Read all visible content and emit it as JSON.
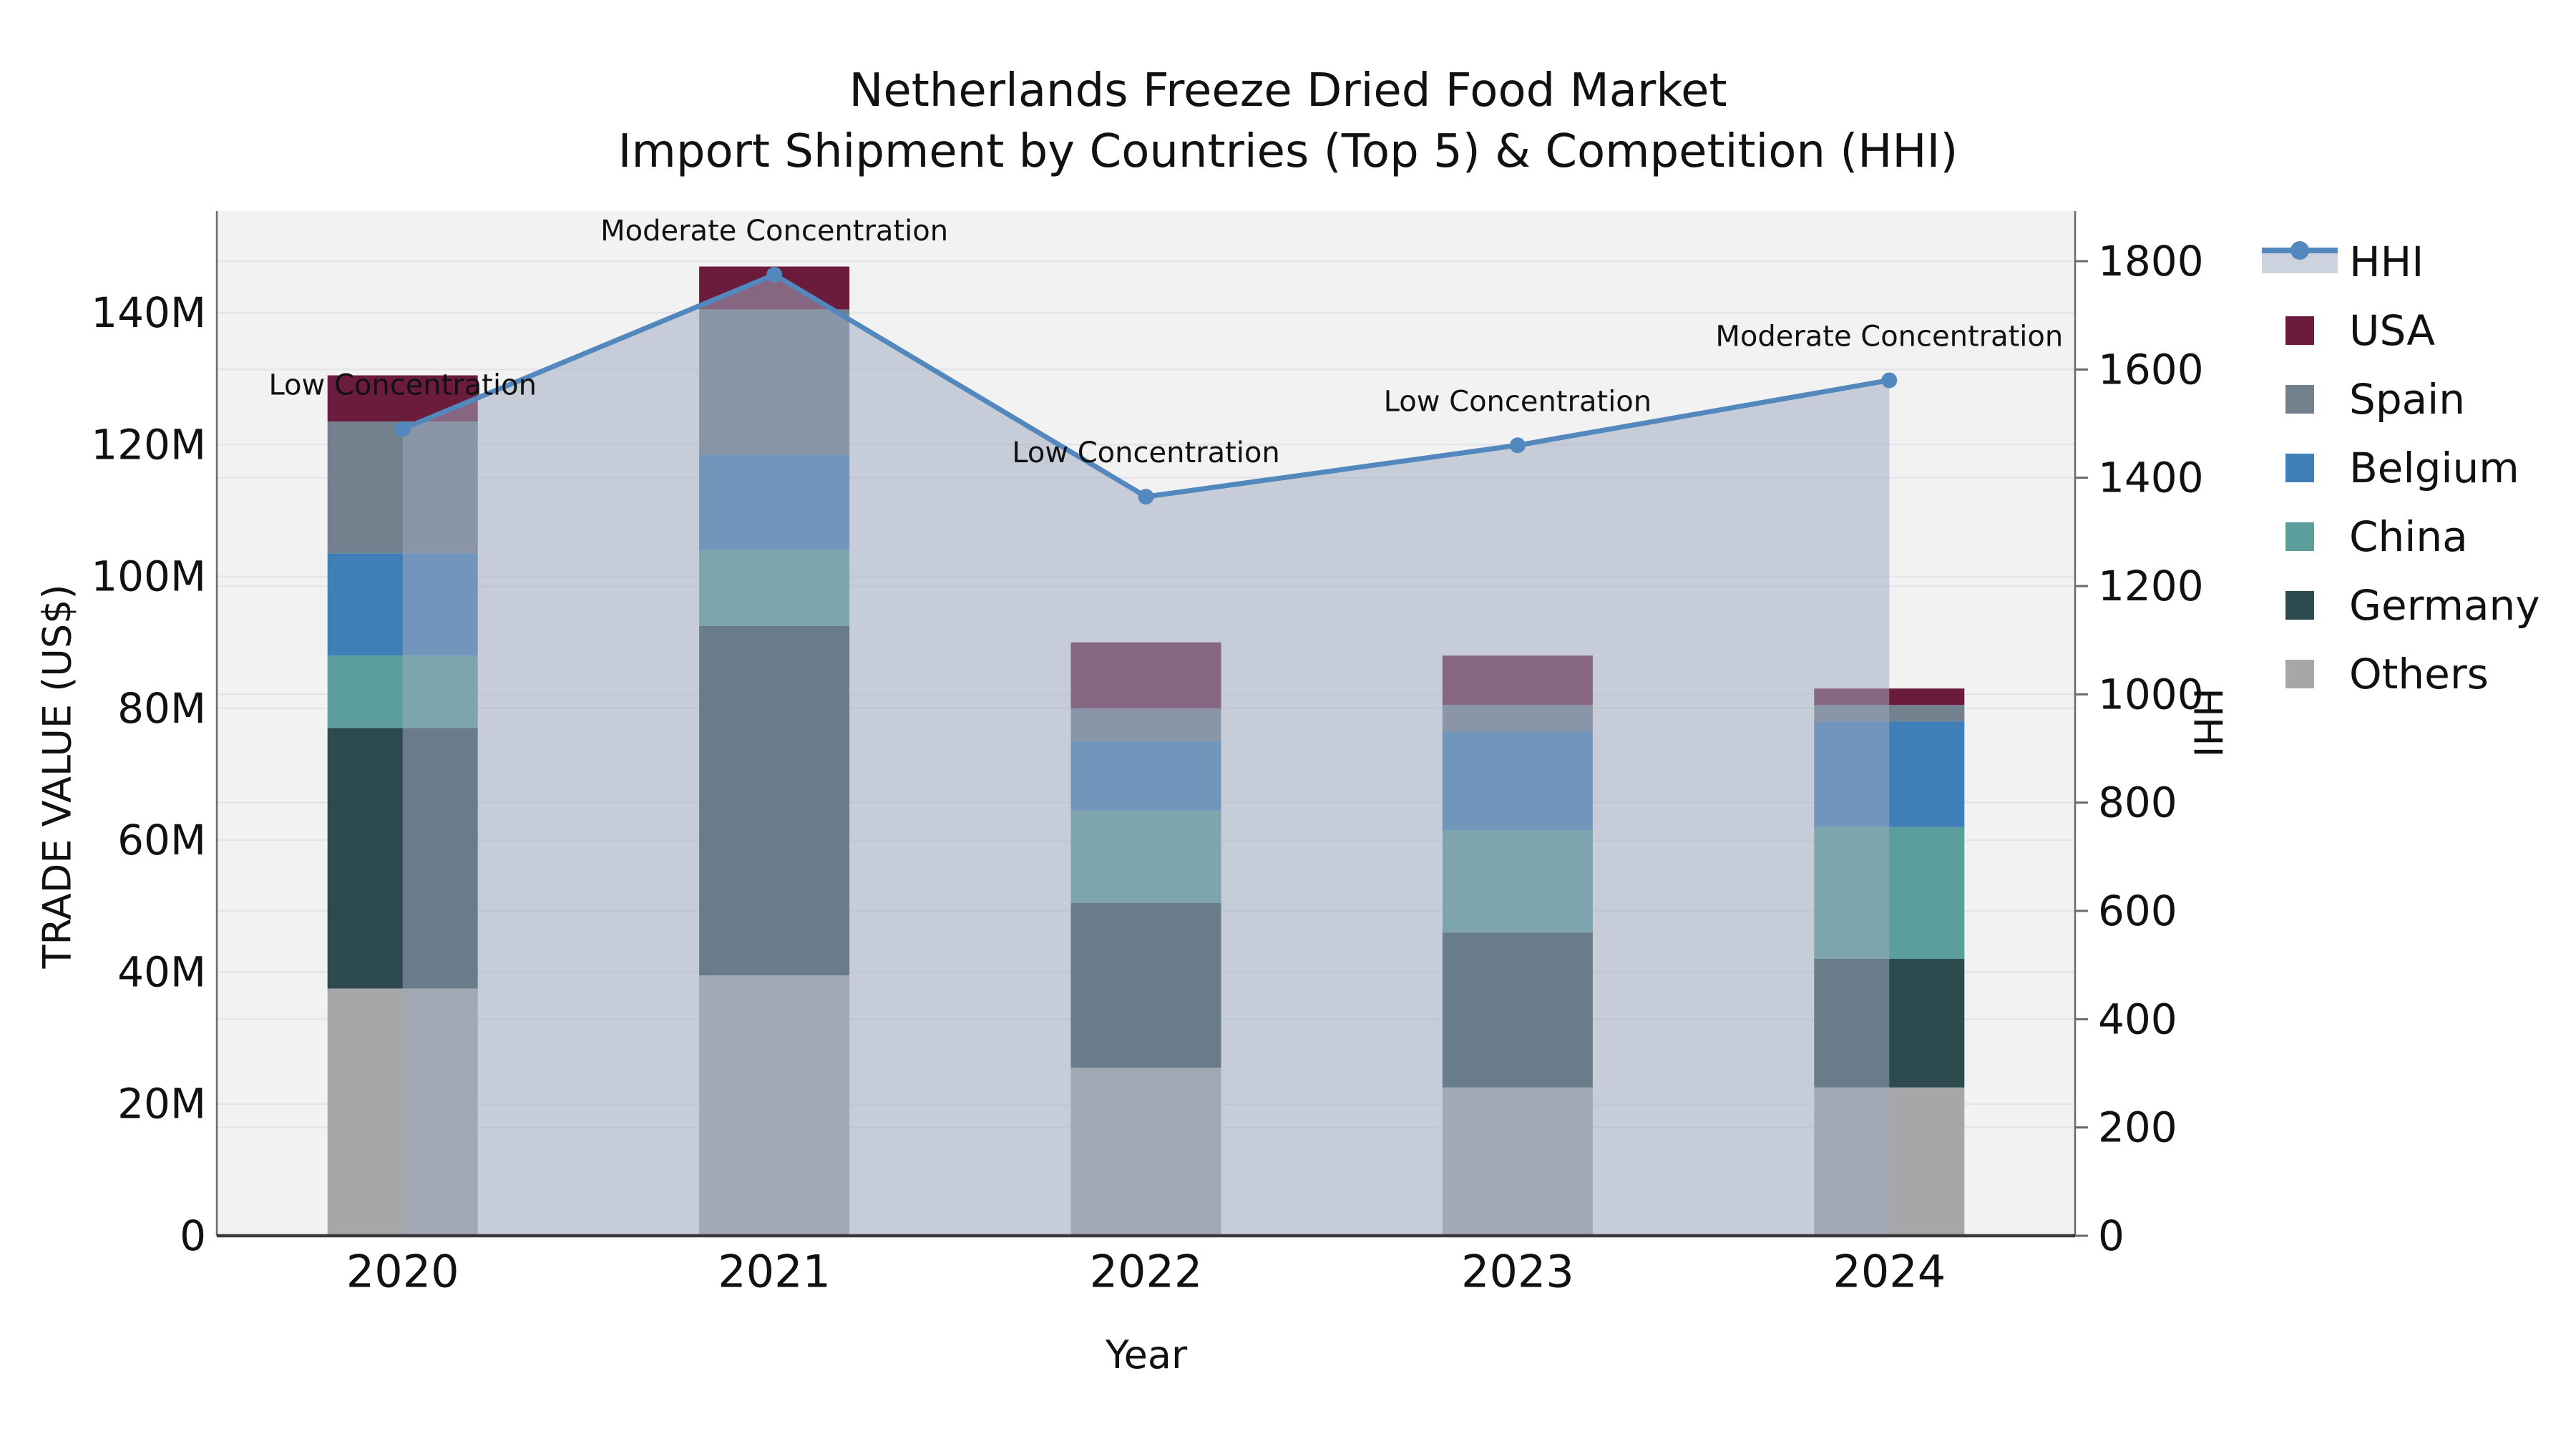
{
  "title": {
    "line1": "Netherlands Freeze Dried Food Market",
    "line2": "Import Shipment by Countries (Top 5) & Competition (HHI)"
  },
  "chart_data": {
    "type": "bar+line",
    "categories": [
      "2020",
      "2021",
      "2022",
      "2023",
      "2024"
    ],
    "xlabel": "Year",
    "ylabel_left": "TRADE VALUE (US$)",
    "ylabel_right": "HHI",
    "y_left_ticks": [
      "0",
      "20M",
      "40M",
      "60M",
      "80M",
      "100M",
      "120M",
      "140M"
    ],
    "y_left_tick_values_m": [
      0,
      20,
      40,
      60,
      80,
      100,
      120,
      140
    ],
    "y_right_ticks": [
      "0",
      "200",
      "400",
      "600",
      "800",
      "1000",
      "1200",
      "1400",
      "1600",
      "1800"
    ],
    "y_right_tick_values": [
      0,
      200,
      400,
      600,
      800,
      1000,
      1200,
      1400,
      1600,
      1800
    ],
    "grid": true,
    "legend_position": "right",
    "series": [
      {
        "name": "USA",
        "color": "#6b1c3c",
        "values_m": [
          7,
          6.5,
          10,
          7.5,
          2.5
        ]
      },
      {
        "name": "Spain",
        "color": "#73808e",
        "values_m": [
          20,
          22,
          5,
          4,
          2.5
        ]
      },
      {
        "name": "Belgium",
        "color": "#3f7eb6",
        "values_m": [
          15.5,
          14.5,
          10.5,
          15,
          16
        ]
      },
      {
        "name": "China",
        "color": "#5b9e9b",
        "values_m": [
          11,
          11.5,
          14,
          15.5,
          20
        ]
      },
      {
        "name": "Germany",
        "color": "#2d4b4f",
        "values_m": [
          39.5,
          53,
          25,
          23.5,
          19.5
        ]
      },
      {
        "name": "Others",
        "color": "#a5a7a8",
        "values_m": [
          37.5,
          39.5,
          25.5,
          22.5,
          22.5
        ]
      }
    ],
    "bar_totals_m": [
      130.5,
      147,
      90,
      88,
      83
    ],
    "hhi": {
      "name": "HHI",
      "line_color": "#5288bd",
      "area_color": "rgba(159,171,192,0.52)",
      "values": [
        1490,
        1775,
        1365,
        1460,
        1580
      ],
      "annotations": [
        "Low Concentration",
        "Moderate Concentration",
        "Low Concentration",
        "Low Concentration",
        "Moderate Concentration"
      ]
    }
  },
  "style": {
    "plot_bg": "#f2f2f3",
    "grid_color": "#e4e5e8",
    "spine_color": "#3a3a3a",
    "side_spine_color": "#6a6a6a",
    "text_color": "#111111",
    "legend_band_color": "#ccd2de"
  }
}
